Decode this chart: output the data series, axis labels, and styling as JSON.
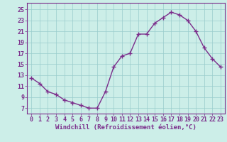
{
  "hours": [
    0,
    1,
    2,
    3,
    4,
    5,
    6,
    7,
    8,
    9,
    10,
    11,
    12,
    13,
    14,
    15,
    16,
    17,
    18,
    19,
    20,
    21,
    22,
    23
  ],
  "values": [
    12.5,
    11.5,
    10.0,
    9.5,
    8.5,
    8.0,
    7.5,
    7.0,
    7.0,
    10.0,
    14.5,
    16.5,
    17.0,
    20.5,
    20.5,
    22.5,
    23.5,
    24.5,
    24.0,
    23.0,
    21.0,
    18.0,
    16.0,
    14.5
  ],
  "line_color": "#7b2d8b",
  "marker": "+",
  "markersize": 4,
  "linewidth": 1.0,
  "bg_color": "#cceee8",
  "grid_color": "#99cccc",
  "xlabel": "Windchill (Refroidissement éolien,°C)",
  "xlabel_fontsize": 6.5,
  "xlabel_color": "#7b2d8b",
  "ylabel_ticks": [
    7,
    9,
    11,
    13,
    15,
    17,
    19,
    21,
    23,
    25
  ],
  "ylim": [
    6.0,
    26.2
  ],
  "xlim": [
    -0.5,
    23.5
  ],
  "tick_fontsize": 6.0,
  "tick_color": "#7b2d8b"
}
